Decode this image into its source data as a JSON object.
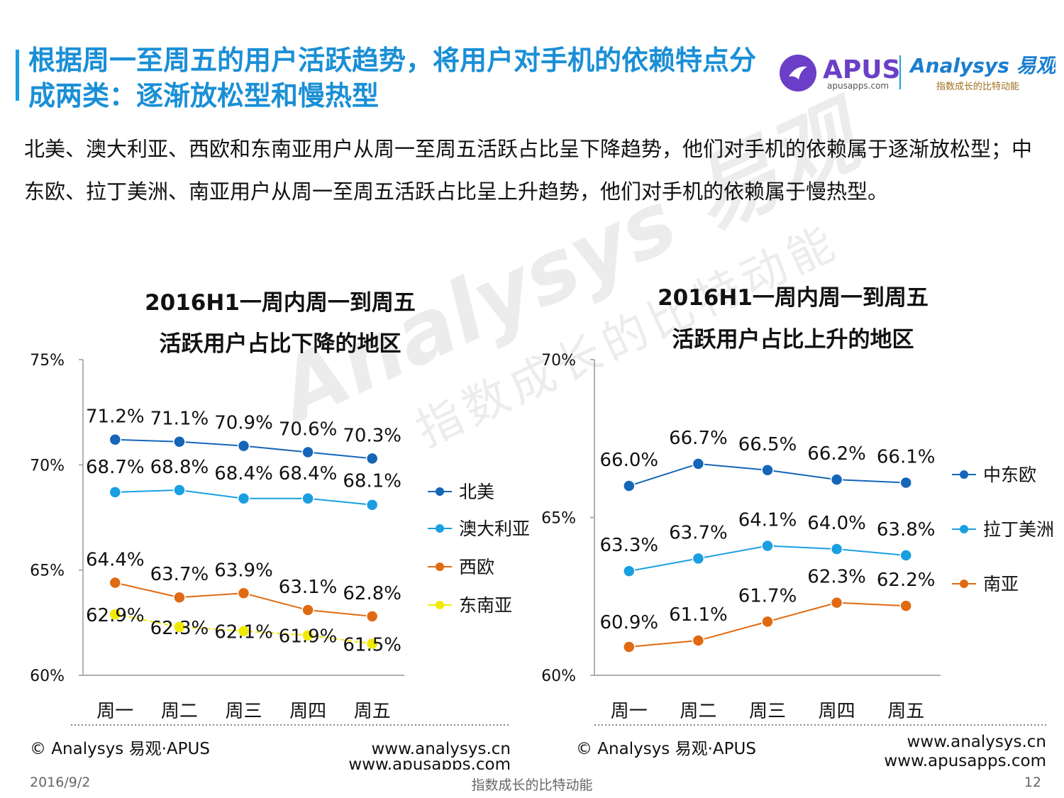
{
  "header": {
    "title": "根据周一至周五的用户活跃趋势，将用户对手机的依赖特点分成两类：逐渐放松型和慢热型",
    "logo_apus": "APUS",
    "logo_apus_url": "apusapps.com",
    "logo_analysys": "Analysys 易观",
    "logo_slogan": "指数成长的比特动能"
  },
  "summary": "北美、澳大利亚、西欧和东南亚用户从周一至周五活跃占比呈下降趋势，他们对手机的依赖属于逐渐放松型；中东欧、拉丁美洲、南亚用户从周一至周五活跃占比呈上升趋势，他们对手机的依赖属于慢热型。",
  "colors": {
    "accent": "#1a8fd6",
    "navy": "#1565b8",
    "sky": "#1a9fe0",
    "orange": "#e06a12",
    "yellow": "#f0ea00",
    "grey": "#888888"
  },
  "chart_data": [
    {
      "type": "line",
      "title": "2016H1一周内周一到周五活跃用户占比下降的地区",
      "title_lines": [
        "2016H1一周内周一到周五",
        "活跃用户占比下降的地区"
      ],
      "categories": [
        "周一",
        "周二",
        "周三",
        "周四",
        "周五"
      ],
      "ylim": [
        60,
        75
      ],
      "yticks": [
        60,
        65,
        70,
        75
      ],
      "yticklabels": [
        "60%",
        "65%",
        "70%",
        "75%"
      ],
      "series": [
        {
          "name": "北美",
          "values": [
            71.2,
            71.1,
            70.9,
            70.6,
            70.3
          ],
          "labels": [
            "71.2%",
            "71.1%",
            "70.9%",
            "70.6%",
            "70.3%"
          ],
          "color": "#1565b8"
        },
        {
          "name": "澳大利亚",
          "values": [
            68.7,
            68.8,
            68.4,
            68.4,
            68.1
          ],
          "labels": [
            "68.7%",
            "68.8%",
            "68.4%",
            "68.4%",
            "68.1%"
          ],
          "color": "#1a9fe0"
        },
        {
          "name": "西欧",
          "values": [
            64.4,
            63.7,
            63.9,
            63.1,
            62.8
          ],
          "labels": [
            "64.4%",
            "63.7%",
            "63.9%",
            "63.1%",
            "62.8%"
          ],
          "color": "#e06a12"
        },
        {
          "name": "东南亚",
          "values": [
            62.9,
            62.3,
            62.1,
            61.9,
            61.5
          ],
          "labels": [
            "62.9%",
            "62.3%",
            "62.1%",
            "61.9%",
            "61.5%"
          ],
          "color": "#f0ea00"
        }
      ],
      "legend": "right",
      "source_left": "© Analysys 易观·APUS",
      "source_right_1": "www.analysys.cn",
      "source_right_2": "www.apusapps.com"
    },
    {
      "type": "line",
      "title": "2016H1一周内周一到周五活跃用户占比上升的地区",
      "title_lines": [
        "2016H1一周内周一到周五",
        "活跃用户占比上升的地区"
      ],
      "categories": [
        "周一",
        "周二",
        "周三",
        "周四",
        "周五"
      ],
      "ylim": [
        60,
        70
      ],
      "yticks": [
        60,
        65,
        70
      ],
      "yticklabels": [
        "60%",
        "65%",
        "70%"
      ],
      "series": [
        {
          "name": "中东欧",
          "values": [
            66.0,
            66.7,
            66.5,
            66.2,
            66.1
          ],
          "labels": [
            "66.0%",
            "66.7%",
            "66.5%",
            "66.2%",
            "66.1%"
          ],
          "color": "#1565b8"
        },
        {
          "name": "拉丁美洲",
          "values": [
            63.3,
            63.7,
            64.1,
            64.0,
            63.8
          ],
          "labels": [
            "63.3%",
            "63.7%",
            "64.1%",
            "64.0%",
            "63.8%"
          ],
          "color": "#1a9fe0"
        },
        {
          "name": "南亚",
          "values": [
            60.9,
            61.1,
            61.7,
            62.3,
            62.2
          ],
          "labels": [
            "60.9%",
            "61.1%",
            "61.7%",
            "62.3%",
            "62.2%"
          ],
          "color": "#e06a12"
        }
      ],
      "legend": "right",
      "source_left": "© Analysys 易观·APUS",
      "source_right_1": "www.analysys.cn",
      "source_right_2": "www.apusapps.com"
    }
  ],
  "watermark": {
    "main": "Analysys 易观",
    "sub": "指数成长的比特动能"
  },
  "footer": {
    "date": "2016/9/2",
    "slogan": "指数成长的比特动能",
    "page": "12"
  }
}
